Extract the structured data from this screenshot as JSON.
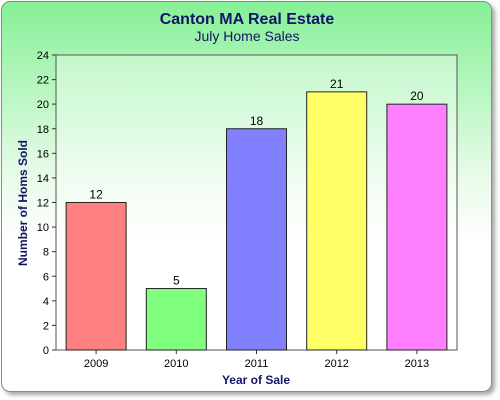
{
  "chart_data": {
    "type": "bar",
    "title": "Canton MA Real Estate",
    "subtitle": "July Home Sales",
    "xlabel": "Year of Sale",
    "ylabel": "Number of Homs Sold",
    "categories": [
      "2009",
      "2010",
      "2011",
      "2012",
      "2013"
    ],
    "values": [
      12,
      5,
      18,
      21,
      20
    ],
    "data_labels": [
      "12",
      "5",
      "18",
      "21",
      "20"
    ],
    "bar_colors": [
      "#ff8080",
      "#80ff80",
      "#8080ff",
      "#ffff66",
      "#ff80ff"
    ],
    "ylim": [
      0,
      24
    ],
    "yticks": [
      0,
      2,
      4,
      6,
      8,
      10,
      12,
      14,
      16,
      18,
      20,
      22,
      24
    ],
    "ytick_labels": [
      "0",
      "2",
      "4",
      "6",
      "8",
      "10",
      "12",
      "14",
      "16",
      "18",
      "20",
      "22",
      "24"
    ],
    "grid": false,
    "legend": "none",
    "background_gradient": [
      "#86f096",
      "#ffffff"
    ]
  }
}
